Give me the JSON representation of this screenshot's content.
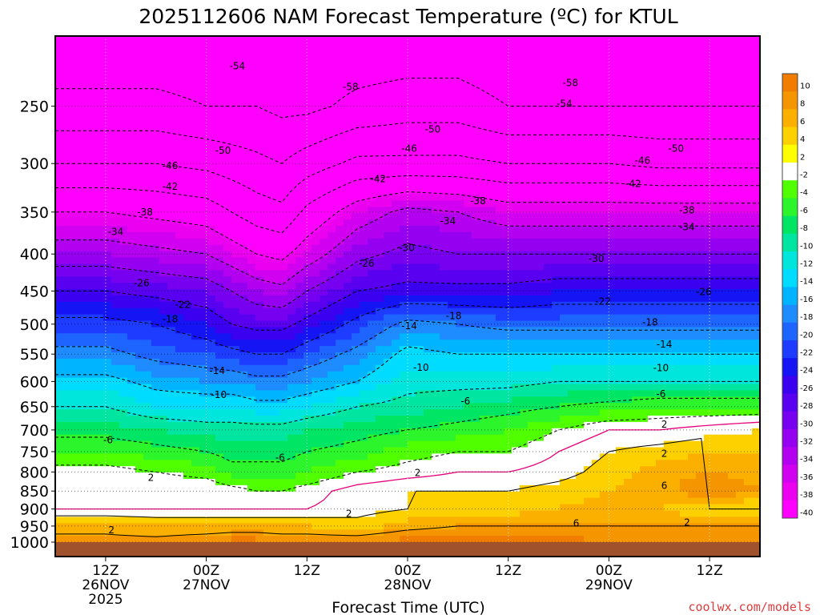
{
  "chart_data": {
    "type": "heatmap",
    "title": "2025112606 NAM Forecast Temperature (ºC) for KTUL",
    "xlabel": "Forecast Time (UTC)",
    "ylabel": "",
    "x_range_hours_from_run": [
      0,
      84
    ],
    "y_range_hPa": [
      1000,
      200
    ],
    "y_ticks": [
      250,
      300,
      350,
      400,
      450,
      500,
      550,
      600,
      650,
      700,
      750,
      800,
      850,
      900,
      950,
      1000
    ],
    "x_ticks": [
      {
        "hour": 6,
        "lines": [
          "12Z",
          "26NOV",
          "2025"
        ]
      },
      {
        "hour": 18,
        "lines": [
          "00Z",
          "27NOV"
        ]
      },
      {
        "hour": 30,
        "lines": [
          "12Z"
        ]
      },
      {
        "hour": 42,
        "lines": [
          "00Z",
          "28NOV"
        ]
      },
      {
        "hour": 54,
        "lines": [
          "12Z"
        ]
      },
      {
        "hour": 66,
        "lines": [
          "00Z",
          "29NOV"
        ]
      },
      {
        "hour": 78,
        "lines": [
          "12Z"
        ]
      }
    ],
    "colorbar_labels": [
      "10",
      "8",
      "6",
      "4",
      "2",
      "-2",
      "-4",
      "-6",
      "-8",
      "-10",
      "-12",
      "-14",
      "-16",
      "-18",
      "-20",
      "-22",
      "-24",
      "-26",
      "-28",
      "-30",
      "-32",
      "-34",
      "-36",
      "-38",
      "-40"
    ],
    "colorbar_colors": [
      "#f07c00",
      "#f59600",
      "#fbb000",
      "#fdd100",
      "#ffff00",
      "#ffffff",
      "#50ff00",
      "#2cf52c",
      "#00e664",
      "#00e6a0",
      "#00e6dc",
      "#00dcff",
      "#00b4ff",
      "#1e8cff",
      "#1e64ff",
      "#1e3cff",
      "#1414f5",
      "#3c00f0",
      "#5a00f0",
      "#7800f0",
      "#9600f0",
      "#b400f0",
      "#d200f0",
      "#eb00f0",
      "#ff00ff"
    ],
    "profile": {
      "hours": [
        0,
        6,
        12,
        18,
        21,
        24,
        27,
        30,
        36,
        42,
        48,
        54,
        60,
        66,
        72,
        78,
        84
      ],
      "levels_hPa": [
        1000,
        950,
        900,
        850,
        800,
        750,
        700,
        650,
        600,
        550,
        500,
        450,
        400,
        350,
        300,
        250,
        200
      ],
      "temp_C": [
        [
          7,
          5,
          0,
          1,
          -1,
          -4,
          -7,
          -10,
          -13,
          -17,
          -21,
          -26,
          -32,
          -38,
          -46,
          -53,
          -57
        ],
        [
          7,
          5,
          0,
          1,
          -1,
          -4,
          -7,
          -10,
          -13,
          -17,
          -21,
          -26,
          -32,
          -38,
          -46,
          -53,
          -57
        ],
        [
          7,
          4,
          0,
          0,
          -2,
          -5,
          -8,
          -12,
          -15,
          -19,
          -22,
          -27,
          -33,
          -39,
          -46,
          -53,
          -57
        ],
        [
          8,
          4,
          0,
          0,
          -3,
          -6,
          -9,
          -12,
          -16,
          -20,
          -24,
          -28,
          -34,
          -40,
          -47,
          -54,
          -57
        ],
        [
          9,
          4,
          0,
          -1,
          -5,
          -7,
          -9,
          -12,
          -16,
          -21,
          -26,
          -30,
          -36,
          -42,
          -48,
          -54,
          -57
        ],
        [
          9,
          4,
          0,
          -2,
          -5,
          -7,
          -9,
          -13,
          -17,
          -22,
          -27,
          -32,
          -38,
          -44,
          -49,
          -54,
          -57
        ],
        [
          8,
          4,
          0,
          -2,
          -5,
          -7,
          -9,
          -13,
          -17,
          -22,
          -27,
          -33,
          -39,
          -45,
          -50,
          -55,
          -57
        ],
        [
          8,
          4,
          0,
          -1,
          -4,
          -6,
          -8,
          -12,
          -16,
          -20,
          -25,
          -30,
          -36,
          -41,
          -48,
          -55,
          -57
        ],
        [
          8,
          3,
          1,
          1,
          -2,
          -5,
          -7,
          -10,
          -14,
          -17,
          -21,
          -26,
          -31,
          -36,
          -45,
          -53,
          -57
        ],
        [
          9,
          5,
          2,
          2,
          -1,
          -3,
          -6,
          -9,
          -11,
          -13,
          -17,
          -25,
          -29,
          -33,
          -45,
          -52,
          -57
        ],
        [
          9,
          6,
          3,
          2,
          0,
          -2,
          -5,
          -8,
          -11,
          -14,
          -18,
          -25,
          -30,
          -34,
          -45,
          -52,
          -57
        ],
        [
          9,
          6,
          3,
          2,
          0,
          -2,
          -4,
          -7,
          -11,
          -14,
          -19,
          -25,
          -30,
          -36,
          -46,
          -54,
          -58
        ],
        [
          9,
          6,
          4,
          3,
          1,
          0,
          -2,
          -6,
          -10,
          -14,
          -19,
          -24,
          -30,
          -36,
          -46,
          -54,
          -58
        ],
        [
          8,
          6,
          5,
          4,
          3,
          2,
          0,
          -5,
          -10,
          -14,
          -19,
          -24,
          -30,
          -36,
          -46,
          -54,
          -58
        ],
        [
          8,
          6,
          4,
          5,
          5,
          3,
          0,
          -4,
          -10,
          -14,
          -19,
          -24,
          -30,
          -36,
          -47,
          -54,
          -58
        ],
        [
          8,
          6,
          2,
          8,
          6,
          4,
          1,
          -4,
          -10,
          -14,
          -19,
          -24,
          -30,
          -36,
          -47,
          -54,
          -58
        ],
        [
          8,
          6,
          2,
          6,
          5,
          4,
          2,
          -4,
          -10,
          -14,
          -19,
          -24,
          -30,
          -36,
          -47,
          -54,
          -58
        ]
      ]
    },
    "contour_labels": [
      {
        "text": "-54",
        "hour": 21.7,
        "p": 220
      },
      {
        "text": "-58",
        "hour": 35.2,
        "p": 235
      },
      {
        "text": "-58",
        "hour": 61.4,
        "p": 232
      },
      {
        "text": "-54",
        "hour": 60.7,
        "p": 248
      },
      {
        "text": "-50",
        "hour": 45.0,
        "p": 269
      },
      {
        "text": "-50",
        "hour": 20.0,
        "p": 288
      },
      {
        "text": "-50",
        "hour": 74.0,
        "p": 286
      },
      {
        "text": "-46",
        "hour": 42.2,
        "p": 286
      },
      {
        "text": "-46",
        "hour": 13.7,
        "p": 302
      },
      {
        "text": "-46",
        "hour": 70.0,
        "p": 297
      },
      {
        "text": "-42",
        "hour": 13.7,
        "p": 323
      },
      {
        "text": "-42",
        "hour": 38.5,
        "p": 315
      },
      {
        "text": "-42",
        "hour": 68.9,
        "p": 320
      },
      {
        "text": "-38",
        "hour": 10.7,
        "p": 350
      },
      {
        "text": "-38",
        "hour": 50.4,
        "p": 338
      },
      {
        "text": "-38",
        "hour": 75.3,
        "p": 348
      },
      {
        "text": "-34",
        "hour": 7.2,
        "p": 373
      },
      {
        "text": "-34",
        "hour": 46.8,
        "p": 360
      },
      {
        "text": "-34",
        "hour": 75.3,
        "p": 367
      },
      {
        "text": "-30",
        "hour": 41.9,
        "p": 392
      },
      {
        "text": "-30",
        "hour": 64.5,
        "p": 406
      },
      {
        "text": "-26",
        "hour": 10.3,
        "p": 439
      },
      {
        "text": "-26",
        "hour": 37.1,
        "p": 412
      },
      {
        "text": "-26",
        "hour": 77.3,
        "p": 451
      },
      {
        "text": "-22",
        "hour": 15.2,
        "p": 470
      },
      {
        "text": "-22",
        "hour": 65.3,
        "p": 465
      },
      {
        "text": "-18",
        "hour": 13.7,
        "p": 492
      },
      {
        "text": "-18",
        "hour": 47.5,
        "p": 487
      },
      {
        "text": "-18",
        "hour": 70.9,
        "p": 497
      },
      {
        "text": "-14",
        "hour": 42.2,
        "p": 503
      },
      {
        "text": "-14",
        "hour": 19.3,
        "p": 580
      },
      {
        "text": "-14",
        "hour": 72.6,
        "p": 533
      },
      {
        "text": "-10",
        "hour": 43.6,
        "p": 574
      },
      {
        "text": "-10",
        "hour": 19.5,
        "p": 626
      },
      {
        "text": "-10",
        "hour": 72.2,
        "p": 575
      },
      {
        "text": "-6",
        "hour": 48.9,
        "p": 639
      },
      {
        "text": "-6",
        "hour": 6.3,
        "p": 723
      },
      {
        "text": "-6",
        "hour": 26.8,
        "p": 764
      },
      {
        "text": "-6",
        "hour": 72.2,
        "p": 624
      },
      {
        "text": "2",
        "hour": 11.4,
        "p": 815
      },
      {
        "text": "2",
        "hour": 43.2,
        "p": 802
      },
      {
        "text": "2",
        "hour": 72.6,
        "p": 688
      },
      {
        "text": "2",
        "hour": 72.6,
        "p": 755
      },
      {
        "text": "2",
        "hour": 6.7,
        "p": 962
      },
      {
        "text": "2",
        "hour": 35.0,
        "p": 914
      },
      {
        "text": "2",
        "hour": 75.3,
        "p": 939
      },
      {
        "text": "6",
        "hour": 62.1,
        "p": 942
      },
      {
        "text": "6",
        "hour": 72.6,
        "p": 836
      }
    ]
  },
  "credit": "coolwx.com/models"
}
